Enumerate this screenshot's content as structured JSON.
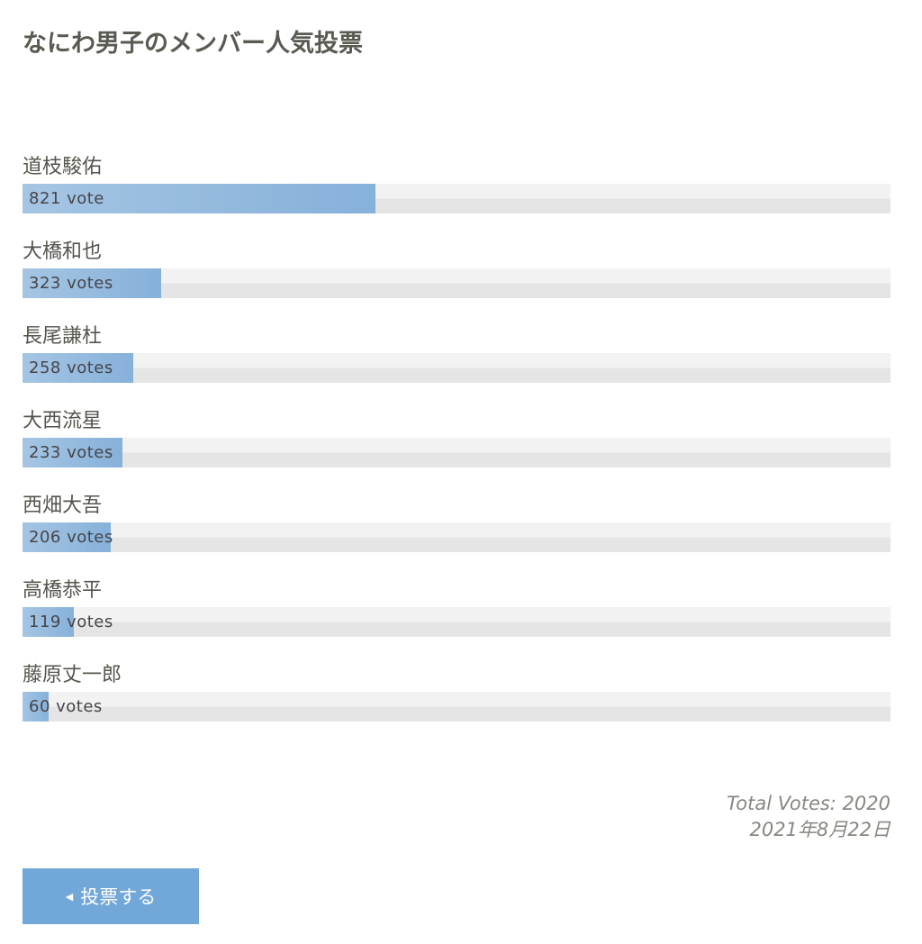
{
  "title": "なにわ男子のメンバー人気投票",
  "total_votes": 2020,
  "accent": "#72a7d9",
  "members": [
    {
      "name": "道枝駿佑",
      "votes": 821,
      "label": "821 vote"
    },
    {
      "name": "大橋和也",
      "votes": 323,
      "label": "323 votes"
    },
    {
      "name": "長尾謙杜",
      "votes": 258,
      "label": "258 votes"
    },
    {
      "name": "大西流星",
      "votes": 233,
      "label": "233 votes"
    },
    {
      "name": "西畑大吾",
      "votes": 206,
      "label": "206 votes"
    },
    {
      "name": "高橋恭平",
      "votes": 119,
      "label": "119 votes"
    },
    {
      "name": "藤原丈一郎",
      "votes": 60,
      "label": "60 votes"
    }
  ],
  "footer": {
    "total_label": "Total Votes: 2020",
    "date": "2021年8月22日"
  },
  "button": {
    "label": "投票する",
    "icon": "triangle-left-icon"
  }
}
